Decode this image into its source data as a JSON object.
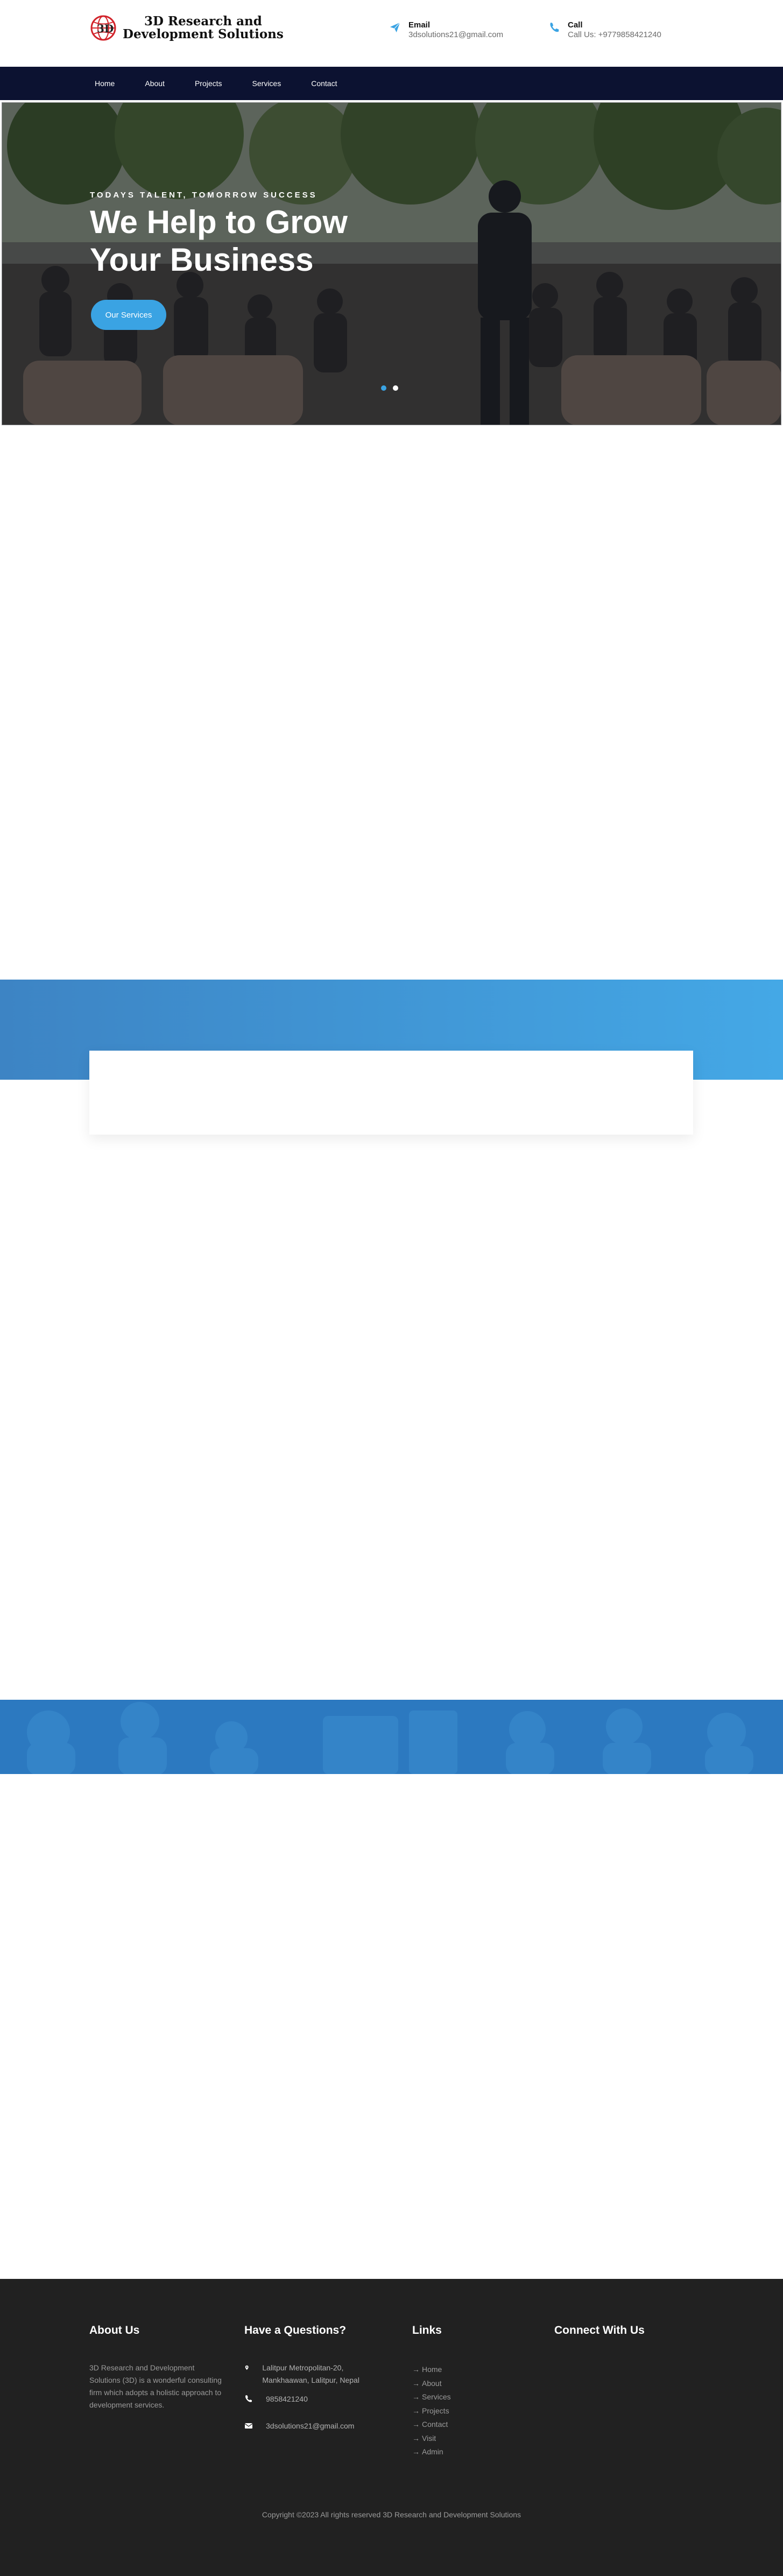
{
  "header": {
    "logo_line1": "3D Research and",
    "logo_line2": "Development Solutions",
    "email_title": "Email",
    "email_value": "3dsolutions21@gmail.com",
    "call_title": "Call",
    "call_value": "Call Us: +9779858421240"
  },
  "nav": {
    "items": [
      "Home",
      "About",
      "Projects",
      "Services",
      "Contact"
    ]
  },
  "hero": {
    "subtitle": "TODAYS TALENT, TOMORROW SUCCESS",
    "title": "We Help to Grow Your Business",
    "button": "Our Services",
    "slides": 2,
    "active_slide": 1
  },
  "footer": {
    "about_heading": "About Us",
    "about_text": "3D Research and Development Solutions (3D) is a wonderful consulting firm which adopts a holistic approach to development services.",
    "questions_heading": "Have a Questions?",
    "address": "Lalitpur Metropolitan-20, Mankhaawan, Lalitpur, Nepal",
    "phone": "9858421240",
    "email": "3dsolutions21@gmail.com",
    "links_heading": "Links",
    "links": [
      "Home",
      "About",
      "Services",
      "Projects",
      "Contact",
      "Visit",
      "Admin"
    ],
    "connect_heading": "Connect With Us",
    "copyright": "Copyright ©2023 All rights reserved 3D Research and Development Solutions"
  },
  "colors": {
    "nav_bg": "#0c1231",
    "accent": "#3aa3e3",
    "footer_bg": "#212121"
  }
}
